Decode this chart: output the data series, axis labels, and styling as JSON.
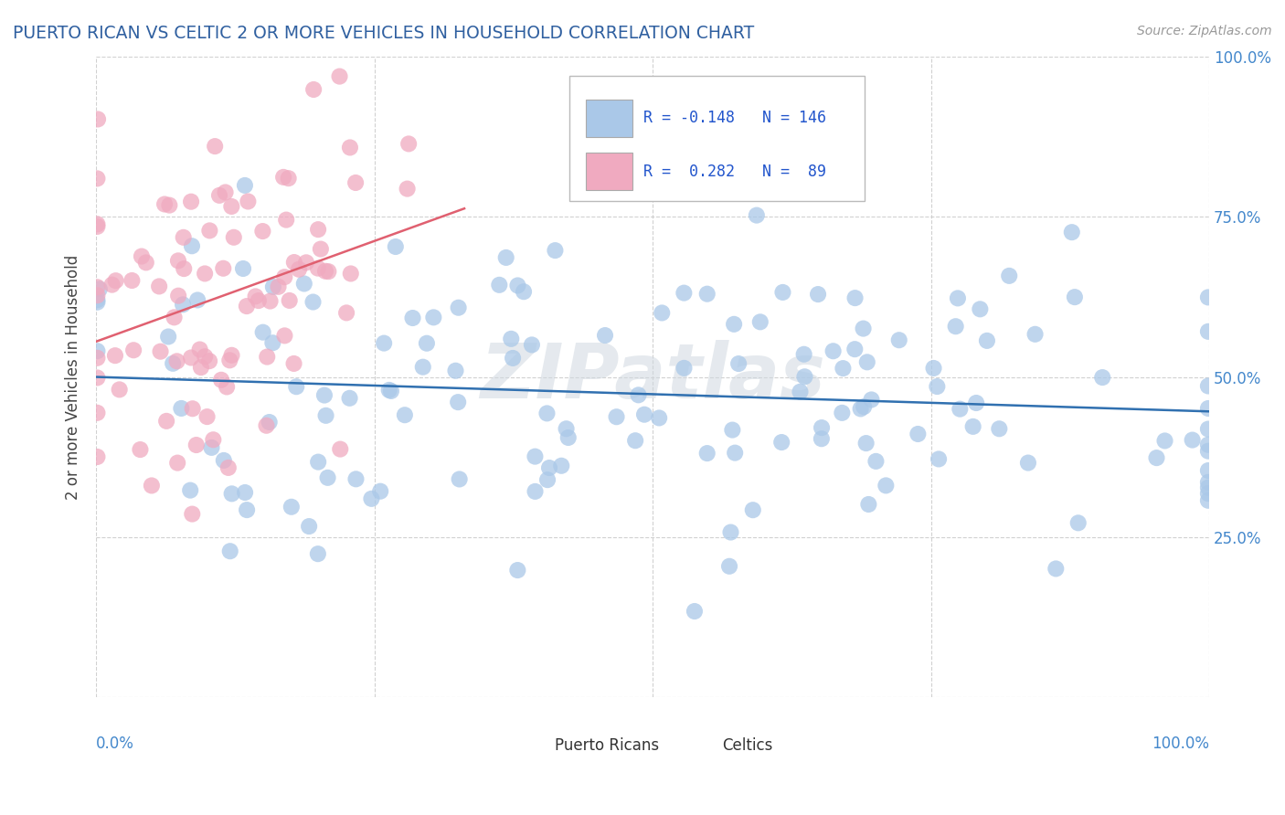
{
  "title": "PUERTO RICAN VS CELTIC 2 OR MORE VEHICLES IN HOUSEHOLD CORRELATION CHART",
  "source": "Source: ZipAtlas.com",
  "ylabel": "2 or more Vehicles in Household",
  "title_color": "#3060a0",
  "source_color": "#999999",
  "watermark": "ZIPatlas",
  "legend_label1": "Puerto Ricans",
  "legend_label2": "Celtics",
  "blue_color": "#aac8e8",
  "pink_color": "#f0aac0",
  "blue_line_color": "#3070b0",
  "pink_line_color": "#e06070",
  "blue_r": -0.148,
  "blue_n": 146,
  "pink_r": 0.282,
  "pink_n": 89
}
